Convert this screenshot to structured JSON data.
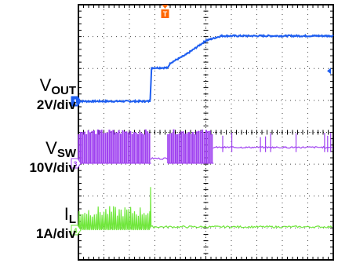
{
  "chart_data": {
    "type": "line",
    "title": "",
    "xlabel": "",
    "ylabel": "",
    "grid": true,
    "grid_divisions": {
      "horizontal": 10,
      "vertical": 8
    },
    "trigger_marker": {
      "label": "T",
      "color": "#ff6600"
    },
    "channels": [
      {
        "id": "1",
        "signal": "V",
        "signal_subscript": "OUT",
        "scale_label": "2V/div",
        "color": "#1e5ef0",
        "points_div": [
          [
            0,
            0
          ],
          [
            2.8,
            0
          ],
          [
            2.82,
            0.1
          ],
          [
            2.87,
            1.05
          ],
          [
            3.5,
            1.05
          ],
          [
            3.6,
            1.2
          ],
          [
            4.2,
            1.45
          ],
          [
            5,
            1.9
          ],
          [
            5.6,
            2.05
          ],
          [
            10,
            2.05
          ]
        ]
      },
      {
        "id": "3",
        "signal": "V",
        "signal_subscript": "SW",
        "scale_label": "10V/div",
        "color": "#a043f0",
        "behavior": [
          {
            "from_div": 0,
            "to_div": 2.85,
            "mode": "switching",
            "baseline_div": 0,
            "high_div": 1.05
          },
          {
            "from_div": 2.85,
            "to_div": 3.5,
            "mode": "flat",
            "baseline_div": 0.15
          },
          {
            "from_div": 3.5,
            "to_div": 5.3,
            "mode": "switching",
            "baseline_div": 0,
            "high_div": 1.05
          },
          {
            "from_div": 5.3,
            "to_div": 10,
            "mode": "occasional",
            "baseline_div": 0.5
          }
        ]
      },
      {
        "id": "4",
        "signal": "I",
        "signal_subscript": "L",
        "scale_label": "1A/div",
        "color": "#6fe73a",
        "behavior": [
          {
            "from_div": 0,
            "to_div": 2.85,
            "mode": "ripple",
            "baseline_div": 0,
            "high_div": 0.75
          },
          {
            "from_div": 2.85,
            "to_div": 10,
            "mode": "flat",
            "baseline_div": 0.1
          }
        ]
      }
    ]
  }
}
